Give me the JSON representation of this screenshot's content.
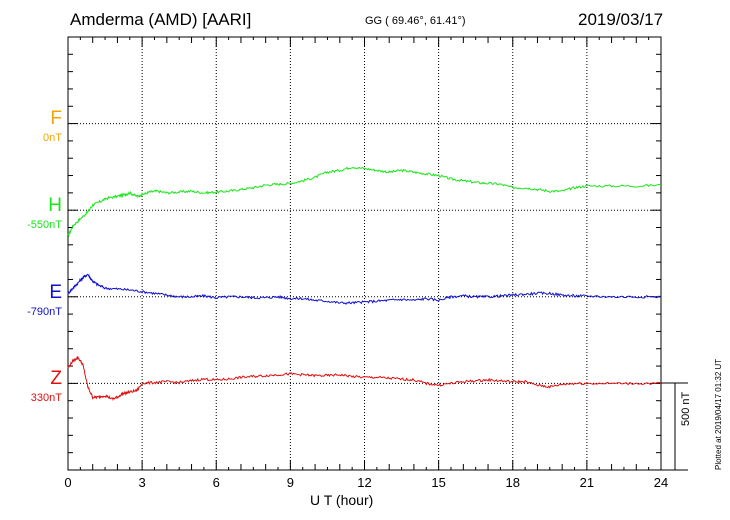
{
  "header": {
    "station": "Amderma (AMD)  [AARI]",
    "coords": "GG ( 69.46°,  61.41°)",
    "date": "2019/03/17"
  },
  "footer": {
    "plotted": "Plotted at 2019/04/17 01:32 UT"
  },
  "chart_data": {
    "type": "line",
    "xlabel": "U T (hour)",
    "xlim": [
      0,
      24
    ],
    "xticks": [
      "0",
      "3",
      "6",
      "9",
      "12",
      "15",
      "18",
      "21",
      "24"
    ],
    "scale_bar": "500 nT",
    "components": [
      {
        "name": "F",
        "baseline": "0nT",
        "color": "#f5a300"
      },
      {
        "name": "H",
        "baseline": "-550nT",
        "color": "#19e619"
      },
      {
        "name": "E",
        "baseline": "-790nT",
        "color": "#1010d0"
      },
      {
        "name": "Z",
        "baseline": "330nT",
        "color": "#e01010"
      }
    ],
    "series": [
      {
        "name": "H",
        "color": "#19e619",
        "baseline_nT": -550,
        "x": [
          0,
          0.2,
          0.5,
          0.8,
          1.0,
          1.3,
          1.6,
          2.0,
          2.3,
          2.5,
          2.8,
          3.0,
          3.3,
          3.6,
          4.0,
          4.5,
          5.0,
          5.5,
          6.0,
          6.5,
          7.0,
          7.5,
          8.0,
          8.5,
          9.0,
          9.5,
          10.0,
          10.5,
          11.0,
          11.5,
          12.0,
          12.5,
          13.0,
          13.5,
          14.0,
          14.5,
          15.0,
          15.5,
          16.0,
          16.5,
          17.0,
          17.5,
          18.0,
          18.5,
          19.0,
          19.5,
          20.0,
          20.5,
          21.0,
          22.0,
          23.0,
          24.0
        ],
        "y": [
          -700,
          -640,
          -600,
          -560,
          -520,
          -500,
          -480,
          -470,
          -460,
          -450,
          -470,
          -460,
          -445,
          -440,
          -450,
          -445,
          -440,
          -450,
          -445,
          -440,
          -430,
          -420,
          -405,
          -400,
          -395,
          -380,
          -360,
          -330,
          -320,
          -300,
          -310,
          -320,
          -330,
          -320,
          -330,
          -340,
          -350,
          -370,
          -380,
          -390,
          -395,
          -400,
          -420,
          -420,
          -430,
          -440,
          -440,
          -420,
          -410,
          -410,
          -410,
          -405
        ]
      },
      {
        "name": "E",
        "color": "#1010d0",
        "baseline_nT": -790,
        "x": [
          0,
          0.2,
          0.4,
          0.6,
          0.8,
          1.0,
          1.2,
          1.5,
          2.0,
          2.5,
          3.0,
          3.5,
          4.0,
          4.5,
          5.0,
          5.5,
          6.0,
          6.5,
          7.0,
          7.5,
          8.0,
          8.5,
          9.0,
          9.5,
          10.0,
          10.5,
          11.0,
          11.5,
          12.0,
          12.5,
          13.0,
          13.5,
          14.0,
          14.5,
          15.0,
          15.5,
          16.0,
          16.5,
          17.0,
          17.5,
          18.0,
          18.5,
          19.0,
          19.5,
          20.0,
          20.5,
          21.0,
          22.0,
          23.0,
          24.0
        ],
        "y": [
          -770,
          -740,
          -710,
          -680,
          -660,
          -700,
          -720,
          -740,
          -745,
          -750,
          -760,
          -770,
          -780,
          -790,
          -790,
          -785,
          -795,
          -790,
          -790,
          -795,
          -795,
          -790,
          -800,
          -800,
          -810,
          -815,
          -825,
          -825,
          -820,
          -815,
          -810,
          -805,
          -810,
          -800,
          -810,
          -790,
          -785,
          -790,
          -790,
          -785,
          -780,
          -775,
          -770,
          -770,
          -780,
          -785,
          -785,
          -790,
          -790,
          -790
        ]
      },
      {
        "name": "Z",
        "color": "#e01010",
        "baseline_nT": 330,
        "x": [
          0,
          0.2,
          0.4,
          0.6,
          0.8,
          1.0,
          1.2,
          1.5,
          1.8,
          2.0,
          2.2,
          2.5,
          2.8,
          3.0,
          3.5,
          4.0,
          4.5,
          5.0,
          5.5,
          6.0,
          6.5,
          7.0,
          7.5,
          8.0,
          8.5,
          9.0,
          9.5,
          10.0,
          10.5,
          11.0,
          11.5,
          12.0,
          12.5,
          13.0,
          13.5,
          14.0,
          14.5,
          15.0,
          15.5,
          16.0,
          16.5,
          17.0,
          17.5,
          18.0,
          18.5,
          19.0,
          19.5,
          20.0,
          20.5,
          21.0,
          22.0,
          23.0,
          24.0
        ],
        "y": [
          420,
          460,
          480,
          440,
          310,
          250,
          250,
          260,
          240,
          250,
          270,
          280,
          290,
          330,
          335,
          340,
          335,
          345,
          355,
          350,
          355,
          365,
          370,
          375,
          380,
          385,
          380,
          375,
          375,
          380,
          370,
          365,
          365,
          360,
          355,
          350,
          330,
          320,
          330,
          340,
          345,
          350,
          345,
          340,
          340,
          320,
          310,
          325,
          330,
          330,
          330,
          330,
          330
        ]
      }
    ]
  }
}
